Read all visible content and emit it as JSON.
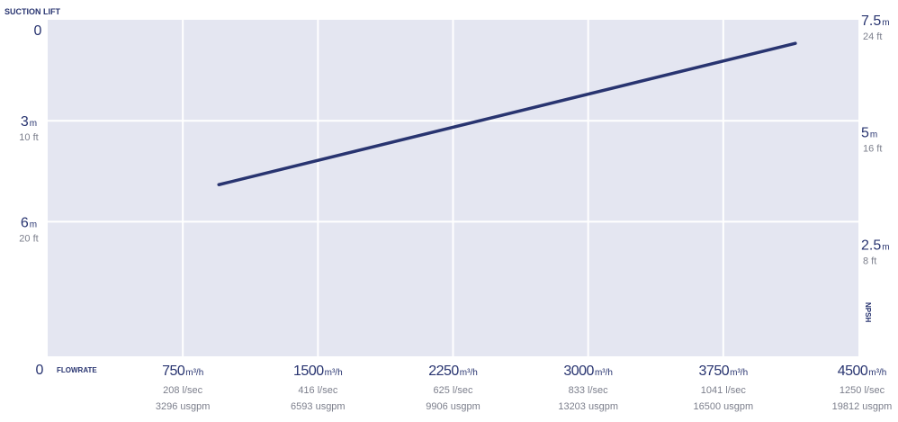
{
  "chart_data": {
    "type": "line",
    "title": "",
    "ylabel": "SUCTION LIFT",
    "xlabel": "FLOWRATE",
    "y2label": "NPSH",
    "xlim": [
      0,
      4500
    ],
    "ylim": [
      0,
      10
    ],
    "y2lim": [
      7.5,
      0
    ],
    "x_ticks": [
      {
        "value": 0,
        "main": "0",
        "sub1": "",
        "sub2": ""
      },
      {
        "value": 750,
        "main": "750",
        "unit": "m³/h",
        "sub1": "208 l/sec",
        "sub2": "3296 usgpm"
      },
      {
        "value": 1500,
        "main": "1500",
        "unit": "m³/h",
        "sub1": "416 l/sec",
        "sub2": "6593 usgpm"
      },
      {
        "value": 2250,
        "main": "2250",
        "unit": "m³/h",
        "sub1": "625 l/sec",
        "sub2": "9906 usgpm"
      },
      {
        "value": 3000,
        "main": "3000",
        "unit": "m³/h",
        "sub1": "833 l/sec",
        "sub2": "13203 usgpm"
      },
      {
        "value": 3750,
        "main": "3750",
        "unit": "m³/h",
        "sub1": "1041 l/sec",
        "sub2": "16500 usgpm"
      },
      {
        "value": 4500,
        "main": "4500",
        "unit": "m³/h",
        "sub1": "1250 l/sec",
        "sub2": "19812 usgpm"
      }
    ],
    "y_ticks": [
      {
        "value": 0,
        "main": "0",
        "unit": "",
        "sub": ""
      },
      {
        "value": 3,
        "main": "3",
        "unit": "m",
        "sub": "10 ft"
      },
      {
        "value": 6,
        "main": "6",
        "unit": "m",
        "sub": "20 ft"
      }
    ],
    "y2_ticks": [
      {
        "value": 7.5,
        "main": "7.5",
        "unit": "m",
        "sub": "24 ft"
      },
      {
        "value": 5,
        "main": "5",
        "unit": "m",
        "sub": "16 ft"
      },
      {
        "value": 2.5,
        "main": "2.5",
        "unit": "m",
        "sub": "8 ft"
      }
    ],
    "grid": true,
    "series": [
      {
        "x": [
          950,
          4150
        ],
        "y": [
          4.9,
          0.7
        ]
      }
    ],
    "colors": {
      "plot_bg": "#e4e6f1",
      "grid": "#ffffff",
      "line": "#283470",
      "label": "#283470",
      "sub_label": "#7c7f8c"
    }
  }
}
